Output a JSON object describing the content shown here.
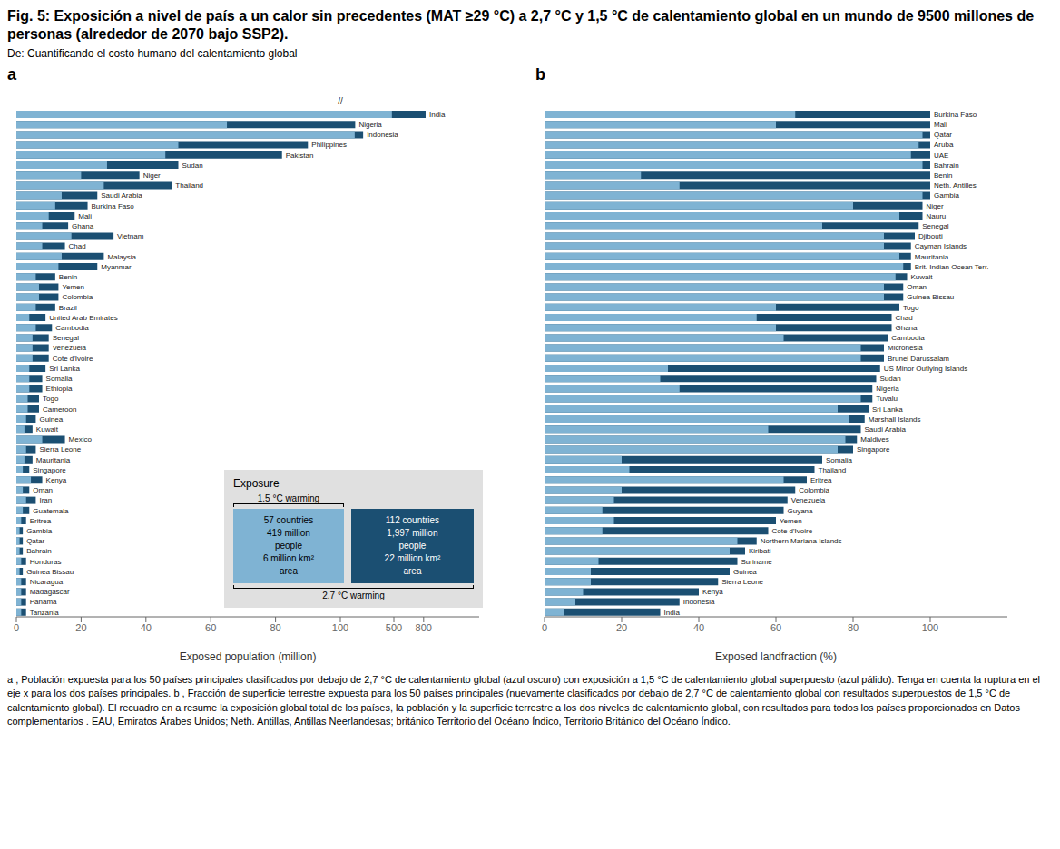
{
  "title": "Fig. 5: Exposición a nivel de país a un calor sin precedentes (MAT ≥29 °C) a 2,7 °C y 1,5 °C de calentamiento global en un mundo de 9500 millones de personas (alrededor de 2070 bajo SSP2).",
  "subtitle": "De: Cuantificando el costo humano del calentamiento global",
  "annotations": [
    "a , Población expuesta para los 50 países principales clasificados por debajo de 2,7 °C de calentamiento global (azul oscuro) con exposición a 1,5 °C de calentamiento global superpuesto (azul pálido). Tenga en cuenta la ruptura en el eje x para los dos países principales. b , Fracción de superficie terrestre expuesta para los 50 países principales (nuevamente clasificados por debajo de 2,7 °C de calentamiento global con resultados superpuestos de 1,5 °C de calentamiento global). El recuadro en a resume la exposición global total de los países, la población y la superficie terrestre a los dos niveles de calentamiento global, con resultados para todos los países proporcionados en Datos complementarios . EAU, Emiratos Árabes Unidos; Neth. Antillas, Antillas Neerlandesas; británico Territorio del Océano Índico, Territorio Británico del Océano Índico."
  ],
  "chart_data": [
    {
      "type": "bar",
      "title": "a",
      "orientation": "horizontal",
      "grid": false,
      "xlabel": "Exposed population (million)",
      "xlim": [
        0,
        1360
      ],
      "xticks": [
        0,
        20,
        40,
        60,
        80,
        100,
        500,
        800
      ],
      "categories": [
        "India",
        "Nigeria",
        "Indonesia",
        "Philippines",
        "Pakistan",
        "Sudan",
        "Niger",
        "Thailand",
        "Saudi Arabia",
        "Burkina Faso",
        "Mali",
        "Ghana",
        "Vietnam",
        "Chad",
        "Malaysia",
        "Myanmar",
        "Benin",
        "Yemen",
        "Colombia",
        "Brazil",
        "United Arab Emirates",
        "Cambodia",
        "Senegal",
        "Venezuela",
        "Cote d'Ivoire",
        "Sri Lanka",
        "Somalia",
        "Ethiopia",
        "Togo",
        "Cameroon",
        "Guinea",
        "Kuwait",
        "Mexico",
        "Sierra Leone",
        "Mauritania",
        "Singapore",
        "Kenya",
        "Oman",
        "Iran",
        "Guatemala",
        "Eritrea",
        "Gambia",
        "Qatar",
        "Bahrain",
        "Honduras",
        "Guinea Bissau",
        "Nicaragua",
        "Madagascar",
        "Panama",
        "Tanzania"
      ],
      "series": [
        {
          "name": "2.7 °C warming",
          "color": "#1b4f72",
          "values": [
            820,
            110,
            190,
            90,
            82,
            50,
            38,
            48,
            25,
            22,
            18,
            16,
            30,
            15,
            27,
            25,
            12,
            13,
            13,
            12,
            9,
            11,
            10,
            10,
            10,
            9,
            8,
            8,
            7,
            7,
            6,
            5,
            15,
            6,
            5,
            4,
            8,
            4,
            6,
            4,
            3,
            2,
            2,
            2,
            3,
            2,
            3,
            3,
            3,
            3
          ]
        },
        {
          "name": "1.5 °C warming",
          "color": "#7fb3d3",
          "values": [
            480,
            65,
            105,
            50,
            46,
            28,
            20,
            27,
            14,
            12,
            10,
            8,
            17,
            8,
            14,
            13,
            6,
            7,
            7,
            6,
            4,
            6,
            5,
            5,
            5,
            4,
            4,
            4,
            3.5,
            3.5,
            3,
            2.5,
            8,
            3,
            2.5,
            2,
            4.5,
            2,
            3,
            2,
            1.5,
            1,
            1,
            1,
            1.5,
            1,
            1.5,
            1.5,
            1.5,
            1.5
          ]
        }
      ],
      "annotations": [
        "//",
        "Exposure",
        "57 countries\n419 million\npeople\n6 million km²\narea",
        "112 countries\n1,997 million\npeople\n22 million km²\narea"
      ]
    },
    {
      "type": "bar",
      "title": "b",
      "orientation": "horizontal",
      "grid": false,
      "xlabel": "Exposed landfraction (%)",
      "xlim": [
        0,
        120
      ],
      "xticks": [
        0,
        20,
        40,
        60,
        80,
        100
      ],
      "categories": [
        "Burkina Faso",
        "Mali",
        "Qatar",
        "Aruba",
        "UAE",
        "Bahrain",
        "Benin",
        "Neth. Antilles",
        "Gambia",
        "Niger",
        "Nauru",
        "Senegal",
        "Djibouti",
        "Cayman Islands",
        "Mauritania",
        "Brit. Indian Ocean Terr.",
        "Kuwait",
        "Oman",
        "Guinea Bissau",
        "Togo",
        "Chad",
        "Ghana",
        "Cambodia",
        "Micronesia",
        "Brunei Darussalam",
        "US Minor Outlying Islands",
        "Sudan",
        "Nigeria",
        "Tuvalu",
        "Sri Lanka",
        "Marshall Islands",
        "Saudi Arabia",
        "Maldives",
        "Singapore",
        "Somalia",
        "Thailand",
        "Eritrea",
        "Colombia",
        "Venezuela",
        "Guyana",
        "Yemen",
        "Cote d'Ivoire",
        "Northern Mariana Islands",
        "Kiribati",
        "Suriname",
        "Guinea",
        "Sierra Leone",
        "Kenya",
        "Indonesia",
        "India"
      ],
      "series": [
        {
          "name": "2.7 °C warming",
          "color": "#1b4f72",
          "values": [
            100,
            100,
            100,
            100,
            100,
            100,
            100,
            100,
            100,
            98,
            98,
            97,
            96,
            95,
            95,
            95,
            94,
            93,
            93,
            92,
            90,
            90,
            89,
            88,
            88,
            87,
            86,
            85,
            85,
            84,
            83,
            82,
            81,
            80,
            72,
            70,
            68,
            65,
            63,
            62,
            60,
            58,
            55,
            52,
            50,
            48,
            45,
            40,
            35,
            30
          ]
        },
        {
          "name": "1.5 °C warming",
          "color": "#7fb3d3",
          "values": [
            65,
            60,
            98,
            97,
            95,
            98,
            25,
            35,
            98,
            80,
            92,
            72,
            88,
            88,
            92,
            93,
            91,
            88,
            88,
            60,
            55,
            60,
            62,
            82,
            82,
            32,
            30,
            35,
            82,
            76,
            79,
            58,
            78,
            76,
            20,
            22,
            62,
            20,
            18,
            15,
            18,
            15,
            50,
            48,
            14,
            12,
            12,
            10,
            8,
            5
          ]
        }
      ]
    }
  ]
}
